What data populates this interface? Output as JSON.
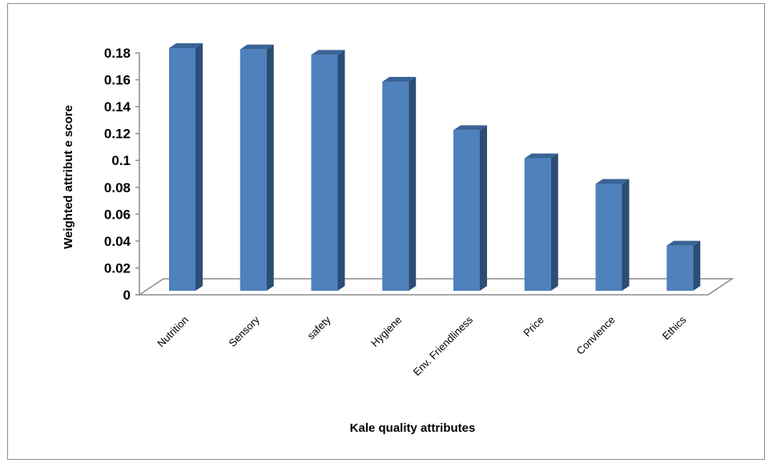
{
  "chart_data": {
    "type": "bar",
    "style": "3d-column",
    "title": "",
    "xlabel": "Kale quality attributes",
    "ylabel": "Weighted attribut e score",
    "categories": [
      "Nutrition",
      "Sensory",
      "safety",
      "Hygiene",
      "Env. Friendliness",
      "Price",
      "Convience",
      "Ethics"
    ],
    "values": [
      0.18,
      0.179,
      0.175,
      0.155,
      0.119,
      0.098,
      0.079,
      0.033
    ],
    "ylim": [
      0,
      0.18
    ],
    "yticks": [
      "0",
      "0.02",
      "0.04",
      "0.06",
      "0.08",
      "0.1",
      "0.12",
      "0.14",
      "0.16",
      "0.18"
    ],
    "grid": false,
    "legend": "none",
    "colors": {
      "bar_front": "#4f81bd",
      "bar_side": "#2c4d75",
      "bar_top": "#3a6496",
      "axis": "#8c8c8c"
    }
  }
}
